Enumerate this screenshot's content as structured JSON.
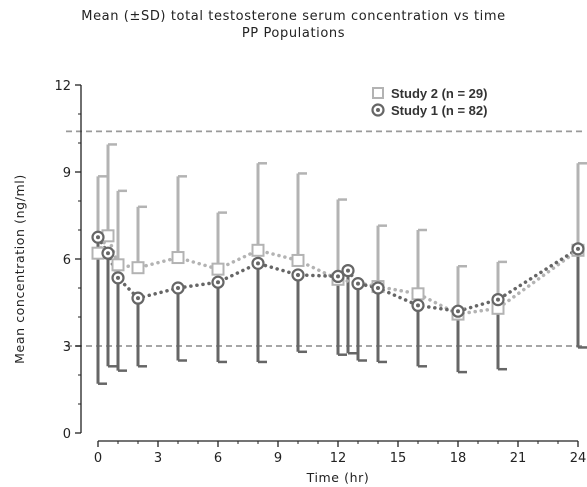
{
  "title_line1": "Mean (±SD) total testosterone serum concentration vs time",
  "title_line2": "PP Populations",
  "chart_data": {
    "type": "line",
    "xlabel": "Time (hr)",
    "ylabel": "Mean concentration (ng/ml)",
    "xlim": [
      0,
      24
    ],
    "ylim": [
      0,
      12
    ],
    "xticks": [
      0,
      3,
      6,
      9,
      12,
      15,
      18,
      21,
      24
    ],
    "yticks": [
      0,
      3,
      6,
      9,
      12
    ],
    "reference_lines": [
      10.4,
      3.0
    ],
    "legend_position": "top-right",
    "series": [
      {
        "name": "Study 2 (n = 29)",
        "marker": "square",
        "color": "#b3b3b3",
        "x": [
          0,
          0.5,
          1,
          2,
          4,
          6,
          8,
          10,
          12,
          14,
          16,
          18,
          20,
          24
        ],
        "y": [
          6.2,
          6.8,
          5.8,
          5.7,
          6.05,
          5.65,
          6.3,
          5.95,
          5.3,
          5.05,
          4.8,
          4.1,
          4.3,
          6.3
        ],
        "sd_upper": [
          8.85,
          9.95,
          8.35,
          7.8,
          8.85,
          7.6,
          9.3,
          8.95,
          8.05,
          7.15,
          7.0,
          5.75,
          5.9,
          9.3
        ]
      },
      {
        "name": "Study 1 (n = 82)",
        "marker": "circle",
        "color": "#666666",
        "x": [
          0,
          0.5,
          1,
          2,
          4,
          6,
          8,
          10,
          12,
          12.5,
          13,
          14,
          16,
          18,
          20,
          24
        ],
        "y": [
          6.75,
          6.2,
          5.35,
          4.65,
          5.0,
          5.2,
          5.85,
          5.45,
          5.4,
          5.6,
          5.15,
          5.0,
          4.4,
          4.2,
          4.6,
          6.35
        ],
        "sd_lower": [
          1.7,
          2.3,
          2.15,
          2.3,
          2.5,
          2.45,
          2.45,
          2.8,
          2.7,
          2.75,
          2.5,
          2.45,
          2.3,
          2.1,
          2.2,
          2.95
        ]
      }
    ]
  }
}
